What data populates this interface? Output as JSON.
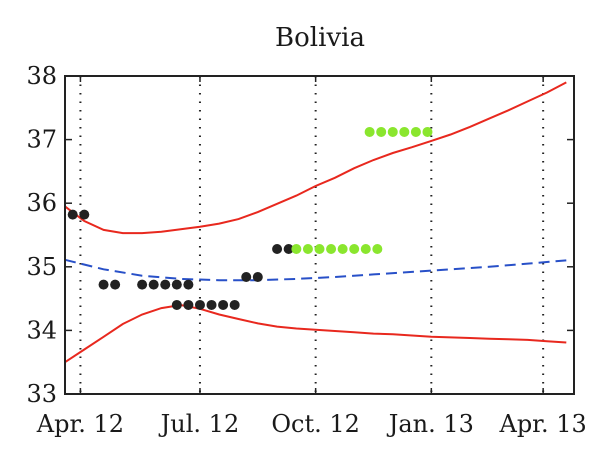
{
  "chart_data": {
    "type": "line",
    "title": "Bolivia",
    "xlabel": "",
    "ylabel": "",
    "xlim": [
      0,
      13.2
    ],
    "ylim": [
      33,
      38
    ],
    "x_ticks": [
      {
        "label": "Apr. 12",
        "x": 0.4
      },
      {
        "label": "Jul. 12",
        "x": 3.5
      },
      {
        "label": "Oct. 12",
        "x": 6.5
      },
      {
        "label": "Jan. 13",
        "x": 9.5
      },
      {
        "label": "Apr. 13",
        "x": 12.4
      }
    ],
    "y_ticks": [
      33,
      34,
      35,
      36,
      37,
      38
    ],
    "grid": "vertical-dotted",
    "colors": {
      "band": "#e8281e",
      "mean": "#2850c8",
      "dot_black": "#222222",
      "dot_green": "#8ae62e"
    },
    "series": [
      {
        "style": "solid-red",
        "x": [
          0.0,
          0.5,
          1.0,
          1.5,
          2.0,
          2.5,
          3.0,
          3.5,
          4.0,
          4.5,
          5.0,
          5.5,
          6.0,
          6.5,
          7.0,
          7.5,
          8.0,
          8.5,
          9.0,
          9.5,
          10.0,
          10.5,
          11.0,
          11.5,
          12.0,
          12.5,
          13.0
        ],
        "y": [
          35.95,
          35.72,
          35.58,
          35.53,
          35.53,
          35.55,
          35.59,
          35.63,
          35.68,
          35.75,
          35.86,
          35.99,
          36.12,
          36.27,
          36.4,
          36.55,
          36.68,
          36.79,
          36.88,
          36.98,
          37.08,
          37.2,
          37.33,
          37.46,
          37.6,
          37.74,
          37.9
        ]
      },
      {
        "style": "dashed-blue",
        "x": [
          0.0,
          1.0,
          2.0,
          3.0,
          4.0,
          5.0,
          6.0,
          7.0,
          8.0,
          9.0,
          10.0,
          11.0,
          12.0,
          13.0
        ],
        "y": [
          35.11,
          34.96,
          34.86,
          34.81,
          34.79,
          34.79,
          34.81,
          34.84,
          34.88,
          34.92,
          34.96,
          35.0,
          35.05,
          35.1
        ]
      },
      {
        "style": "solid-red",
        "x": [
          0.0,
          0.5,
          1.0,
          1.5,
          2.0,
          2.5,
          3.0,
          3.5,
          4.0,
          4.5,
          5.0,
          5.5,
          6.0,
          6.5,
          7.0,
          7.5,
          8.0,
          8.5,
          9.0,
          9.5,
          10.0,
          10.5,
          11.0,
          11.5,
          12.0,
          12.5,
          13.0
        ],
        "y": [
          33.5,
          33.7,
          33.9,
          34.1,
          34.25,
          34.35,
          34.4,
          34.34,
          34.25,
          34.18,
          34.11,
          34.06,
          34.03,
          34.01,
          33.99,
          33.97,
          33.95,
          33.94,
          33.92,
          33.9,
          33.89,
          33.88,
          33.87,
          33.86,
          33.85,
          33.83,
          33.81
        ]
      }
    ],
    "dots": [
      {
        "y": 35.82,
        "color": "black",
        "x": [
          0.2,
          0.5
        ]
      },
      {
        "y": 34.72,
        "color": "black",
        "x": [
          1.0,
          1.3
        ]
      },
      {
        "y": 34.72,
        "color": "black",
        "x": [
          2.0,
          2.3,
          2.6,
          2.9,
          3.2
        ]
      },
      {
        "y": 34.4,
        "color": "black",
        "x": [
          2.9,
          3.2,
          3.5,
          3.8,
          4.1,
          4.4
        ]
      },
      {
        "y": 34.84,
        "color": "black",
        "x": [
          4.7,
          5.0
        ]
      },
      {
        "y": 35.28,
        "color": "black",
        "x": [
          5.5,
          5.8
        ]
      },
      {
        "y": 35.28,
        "color": "green",
        "x": [
          6.0,
          6.3,
          6.6,
          6.9,
          7.2,
          7.5,
          7.8,
          8.1
        ]
      },
      {
        "y": 37.12,
        "color": "green",
        "x": [
          7.9,
          8.2,
          8.5,
          8.8,
          9.1,
          9.4
        ]
      }
    ]
  }
}
